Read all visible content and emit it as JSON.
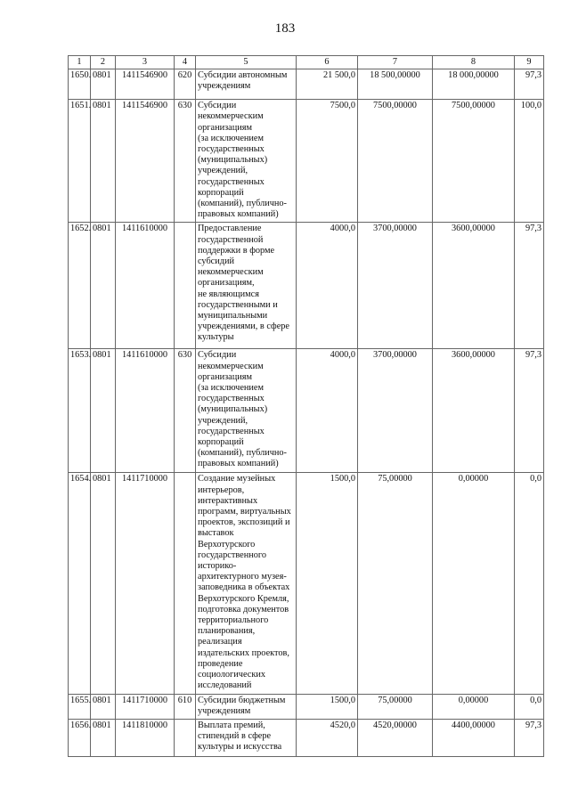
{
  "page_number": "183",
  "headers": [
    "1",
    "2",
    "3",
    "4",
    "5",
    "6",
    "7",
    "8",
    "9"
  ],
  "rows": [
    {
      "n": "1650.",
      "sec": "0801",
      "csr": "1411546900",
      "vr": "620",
      "name": "Субсидии автономным\nучреждениям",
      "c6": "21 500,0",
      "c7": "18 500,00000",
      "c8": "18 000,00000",
      "c9": "97,3"
    },
    {
      "n": "1651.",
      "sec": "0801",
      "csr": "1411546900",
      "vr": "630",
      "name": "Субсидии\nнекоммерческим\nорганизациям\n(за исключением\nгосударственных\n(муниципальных)\nучреждений,\nгосударственных\nкорпораций\n(компаний), публично-\nправовых компаний)",
      "c6": "7500,0",
      "c7": "7500,00000",
      "c8": "7500,00000",
      "c9": "100,0"
    },
    {
      "n": "1652.",
      "sec": "0801",
      "csr": "1411610000",
      "vr": "",
      "name": "Предоставление\nгосударственной\nподдержки в форме\nсубсидий\nнекоммерческим\nорганизациям,\nне являющимся\nгосударственными и\nмуниципальными\nучреждениями, в сфере\nкультуры",
      "c6": "4000,0",
      "c7": "3700,00000",
      "c8": "3600,00000",
      "c9": "97,3"
    },
    {
      "n": "1653.",
      "sec": "0801",
      "csr": "1411610000",
      "vr": "630",
      "name": "Субсидии\nнекоммерческим\nорганизациям\n(за исключением\nгосударственных\n(муниципальных)\nучреждений,\nгосударственных\nкорпораций\n(компаний), публично-\nправовых компаний)",
      "c6": "4000,0",
      "c7": "3700,00000",
      "c8": "3600,00000",
      "c9": "97,3"
    },
    {
      "n": "1654.",
      "sec": "0801",
      "csr": "1411710000",
      "vr": "",
      "name": "Создание музейных\nинтерьеров,\nинтерактивных\nпрограмм, виртуальных\nпроектов, экспозиций и\nвыставок\nВерхотурского\nгосударственного\nисторико-\nархитектурного музея-\nзаповедника в объектах\nВерхотурского Кремля,\nподготовка документов\nтерриториального\nпланирования,\nреализация\nиздательских проектов,\nпроведение\nсоциологических\nисследований",
      "c6": "1500,0",
      "c7": "75,00000",
      "c8": "0,00000",
      "c9": "0,0"
    },
    {
      "n": "1655.",
      "sec": "0801",
      "csr": "1411710000",
      "vr": "610",
      "name": "Субсидии бюджетным\nучреждениям",
      "c6": "1500,0",
      "c7": "75,00000",
      "c8": "0,00000",
      "c9": "0,0"
    },
    {
      "n": "1656.",
      "sec": "0801",
      "csr": "1411810000",
      "vr": "",
      "name": "Выплата премий,\nстипендий в сфере\nкультуры и искусства",
      "c6": "4520,0",
      "c7": "4520,00000",
      "c8": "4400,00000",
      "c9": "97,3"
    }
  ]
}
